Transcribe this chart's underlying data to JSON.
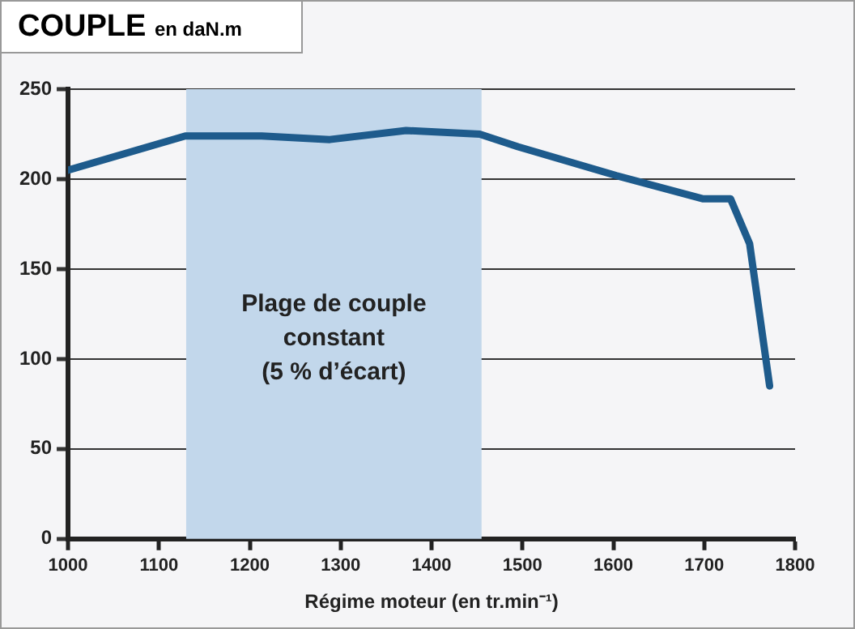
{
  "chart_data": {
    "type": "line",
    "title": "COUPLE",
    "subtitle": "en daN.m",
    "xlabel": "Régime moteur (en tr.min⁻¹)",
    "x": [
      1000,
      1129,
      1213,
      1288,
      1372,
      1453,
      1495,
      1603,
      1699,
      1729,
      1750,
      1772
    ],
    "series": [
      {
        "color": "#1e5b8c",
        "values": [
          205,
          224,
          224,
          222,
          227,
          225,
          218,
          202,
          189,
          189,
          164,
          85
        ]
      }
    ],
    "xlim": [
      1000,
      1800
    ],
    "xticks": [
      1000,
      1100,
      1200,
      1300,
      1400,
      1500,
      1600,
      1700,
      1800
    ],
    "ylim": [
      0,
      250
    ],
    "yticks": [
      0,
      50,
      100,
      150,
      200,
      250
    ],
    "bands": [
      {
        "axis": "x",
        "from": 1130,
        "to": 1455,
        "label": "Plage de couple constant (5 % d’écart)",
        "color": "#c2d7eb"
      }
    ],
    "grid": "y",
    "legend": false,
    "marker": "none",
    "line_style": "solid"
  }
}
